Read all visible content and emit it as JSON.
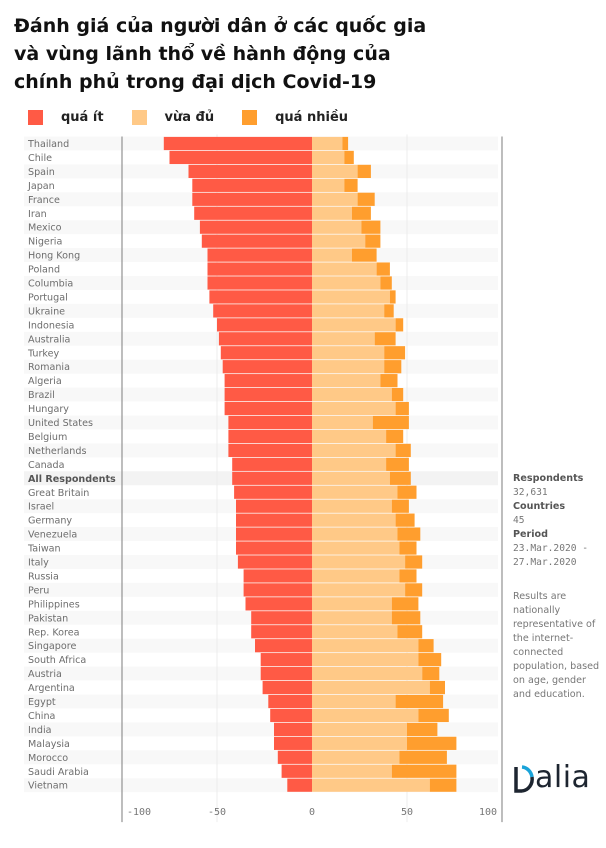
{
  "title_lines": [
    "Đánh giá của người dân ở các quốc gia",
    "và vùng lãnh thổ về hành động của",
    "chính phủ trong đại dịch Covid-19"
  ],
  "legend": [
    {
      "label": "quá ít",
      "color": "#ff5a45"
    },
    {
      "label": "vừa đủ",
      "color": "#ffc987"
    },
    {
      "label": "quá nhiều",
      "color": "#ff9e2e"
    }
  ],
  "sidebar": {
    "respondents_label": "Respondents",
    "respondents_value": "32,631",
    "countries_label": "Countries",
    "countries_value": "45",
    "period_label": "Period",
    "period_value_1": "23.Mar.2020 -",
    "period_value_2": "27.Mar.2020",
    "note": "Results are nationally representative of the internet-connected population, based on age, gender and education."
  },
  "logo": {
    "text": "alia",
    "brand": "Dalia",
    "accent_color": "#1aa3d9"
  },
  "chart_data": {
    "type": "bar",
    "orientation": "horizontal-diverging-stacked",
    "title": "Đánh giá của người dân ở các quốc gia và vùng lãnh thổ về hành động của chính phủ trong đại dịch Covid-19",
    "xlabel": "",
    "ylabel": "",
    "xlim": [
      -100,
      100
    ],
    "xticks": [
      -100,
      -50,
      0,
      50,
      100
    ],
    "xtick_labels": [
      "-100",
      "-50",
      "0",
      "50",
      "100"
    ],
    "legend_position": "top-left",
    "grid": true,
    "highlight_category": "All Respondents",
    "categories": [
      "Thailand",
      "Chile",
      "Spain",
      "Japan",
      "France",
      "Iran",
      "Mexico",
      "Nigeria",
      "Hong Kong",
      "Poland",
      "Columbia",
      "Portugal",
      "Ukraine",
      "Indonesia",
      "Australia",
      "Turkey",
      "Romania",
      "Algeria",
      "Brazil",
      "Hungary",
      "United States",
      "Belgium",
      "Netherlands",
      "Canada",
      "All Respondents",
      "Great Britain",
      "Israel",
      "Germany",
      "Venezuela",
      "Taiwan",
      "Italy",
      "Russia",
      "Peru",
      "Philippines",
      "Pakistan",
      "Rep. Korea",
      "Singapore",
      "South Africa",
      "Austria",
      "Argentina",
      "Egypt",
      "China",
      "India",
      "Malaysia",
      "Morocco",
      "Saudi Arabia",
      "Vietnam"
    ],
    "series": [
      {
        "name": "quá ít",
        "color": "#ff5a45",
        "direction": "negative",
        "values": [
          78,
          75,
          65,
          63,
          63,
          62,
          59,
          58,
          55,
          55,
          55,
          54,
          52,
          50,
          49,
          48,
          47,
          46,
          46,
          46,
          44,
          44,
          44,
          42,
          42,
          41,
          40,
          40,
          40,
          40,
          39,
          36,
          36,
          35,
          32,
          32,
          30,
          27,
          27,
          26,
          23,
          22,
          20,
          20,
          18,
          16,
          13
        ]
      },
      {
        "name": "vừa đủ",
        "color": "#ffc987",
        "direction": "positive",
        "values": [
          16,
          17,
          24,
          17,
          24,
          21,
          26,
          28,
          21,
          34,
          36,
          41,
          38,
          44,
          33,
          38,
          38,
          36,
          42,
          44,
          32,
          39,
          44,
          39,
          41,
          45,
          42,
          44,
          45,
          46,
          49,
          46,
          49,
          42,
          42,
          45,
          56,
          56,
          58,
          62,
          44,
          56,
          50,
          50,
          46,
          42,
          62
        ]
      },
      {
        "name": "quá nhiều",
        "color": "#ff9e2e",
        "direction": "positive",
        "values": [
          3,
          5,
          7,
          7,
          9,
          10,
          10,
          8,
          13,
          7,
          6,
          3,
          5,
          4,
          11,
          11,
          9,
          9,
          6,
          7,
          19,
          9,
          8,
          12,
          11,
          10,
          9,
          10,
          12,
          9,
          9,
          9,
          9,
          14,
          15,
          13,
          8,
          12,
          9,
          8,
          25,
          16,
          16,
          26,
          25,
          34,
          14
        ]
      }
    ]
  }
}
